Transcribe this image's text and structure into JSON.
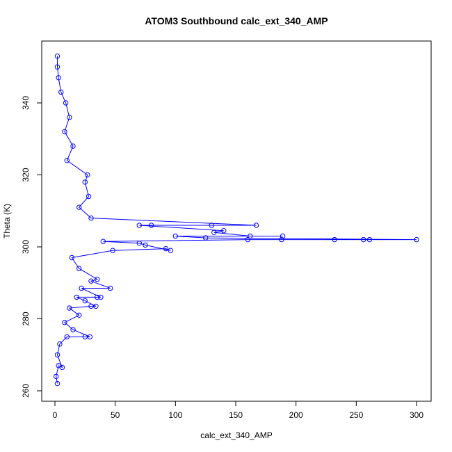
{
  "chart_data": {
    "type": "scatter",
    "title": "ATOM3 Southbound calc_ext_340_AMP",
    "xlabel": "calc_ext_340_AMP",
    "ylabel": "Theta (K)",
    "xlim": [
      -10,
      310
    ],
    "ylim": [
      260,
      355
    ],
    "x_ticks": [
      0,
      50,
      100,
      150,
      200,
      250,
      300
    ],
    "y_ticks": [
      260,
      280,
      300,
      320,
      340
    ],
    "grid": false,
    "legend": "none",
    "point_style": "open-circle",
    "connected": true,
    "color": "#0000ff",
    "series": [
      {
        "points": [
          [
            2,
            262
          ],
          [
            1,
            264
          ],
          [
            3,
            267
          ],
          [
            6,
            266.5
          ],
          [
            2,
            270
          ],
          [
            4,
            273
          ],
          [
            10,
            275
          ],
          [
            25,
            275
          ],
          [
            29,
            275
          ],
          [
            15,
            277
          ],
          [
            8,
            279
          ],
          [
            20,
            281
          ],
          [
            12,
            283
          ],
          [
            30,
            283.5
          ],
          [
            34,
            283.5
          ],
          [
            25,
            285
          ],
          [
            18,
            286
          ],
          [
            35,
            286
          ],
          [
            38,
            286
          ],
          [
            22,
            288.5
          ],
          [
            46,
            288.5
          ],
          [
            30,
            290.5
          ],
          [
            35,
            291
          ],
          [
            20,
            294
          ],
          [
            14,
            297
          ],
          [
            48,
            299
          ],
          [
            92,
            299.5
          ],
          [
            96,
            299
          ],
          [
            75,
            300.5
          ],
          [
            70,
            301
          ],
          [
            40,
            301.5
          ],
          [
            160,
            302
          ],
          [
            188,
            302
          ],
          [
            232,
            302
          ],
          [
            256,
            302
          ],
          [
            261,
            302
          ],
          [
            300,
            302
          ],
          [
            125,
            302.5
          ],
          [
            100,
            303
          ],
          [
            189,
            303
          ],
          [
            162,
            303
          ],
          [
            132,
            304
          ],
          [
            140,
            304.5
          ],
          [
            70,
            306
          ],
          [
            80,
            306
          ],
          [
            130,
            306
          ],
          [
            167,
            306
          ],
          [
            30,
            308
          ],
          [
            20,
            311
          ],
          [
            28,
            314
          ],
          [
            25,
            318
          ],
          [
            27,
            320
          ],
          [
            10,
            324
          ],
          [
            15,
            328
          ],
          [
            8,
            332
          ],
          [
            12,
            336
          ],
          [
            9,
            340
          ],
          [
            5,
            343
          ],
          [
            3,
            347
          ],
          [
            2,
            350
          ],
          [
            2,
            353
          ]
        ]
      }
    ]
  }
}
